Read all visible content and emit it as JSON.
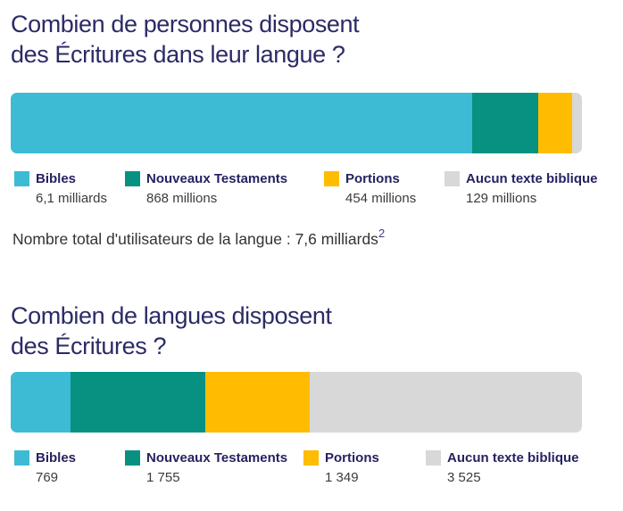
{
  "colors": {
    "bibles": "#3DBBD4",
    "nouveaux_testaments": "#079181",
    "portions": "#FFBC00",
    "aucun_texte": "#D8D8D8",
    "title_navy": "#2B2B66",
    "label_navy": "#262262",
    "body_text": "#333333",
    "footnote_ref": "#3D3D8F"
  },
  "chart_data": [
    {
      "type": "bar",
      "stacked": true,
      "orientation": "horizontal",
      "title": "Combien de personnes disposent\ndes Écritures dans leur langue ?",
      "categories": [
        "Bibles",
        "Nouveaux Testaments",
        "Portions",
        "Aucun texte biblique"
      ],
      "values": [
        6100,
        868,
        454,
        129
      ],
      "values_unit": "millions de personnes",
      "value_labels": [
        "6,1 milliards",
        "868 millions",
        "454 millions",
        "129 millions"
      ],
      "colors": [
        "#3DBBD4",
        "#079181",
        "#FFBC00",
        "#D8D8D8"
      ],
      "legend_position": "bottom",
      "grid": false,
      "footnote": "Nombre total d'utilisateurs de la langue : 7,6 milliards",
      "footnote_sup": "2"
    },
    {
      "type": "bar",
      "stacked": true,
      "orientation": "horizontal",
      "title": "Combien de langues disposent\ndes Écritures ?",
      "categories": [
        "Bibles",
        "Nouveaux Testaments",
        "Portions",
        "Aucun texte biblique"
      ],
      "values": [
        769,
        1755,
        1349,
        3525
      ],
      "values_unit": "langues",
      "value_labels": [
        "769",
        "1 755",
        "1 349",
        "3 525"
      ],
      "colors": [
        "#3DBBD4",
        "#079181",
        "#FFBC00",
        "#D8D8D8"
      ],
      "legend_position": "bottom",
      "grid": false
    }
  ]
}
